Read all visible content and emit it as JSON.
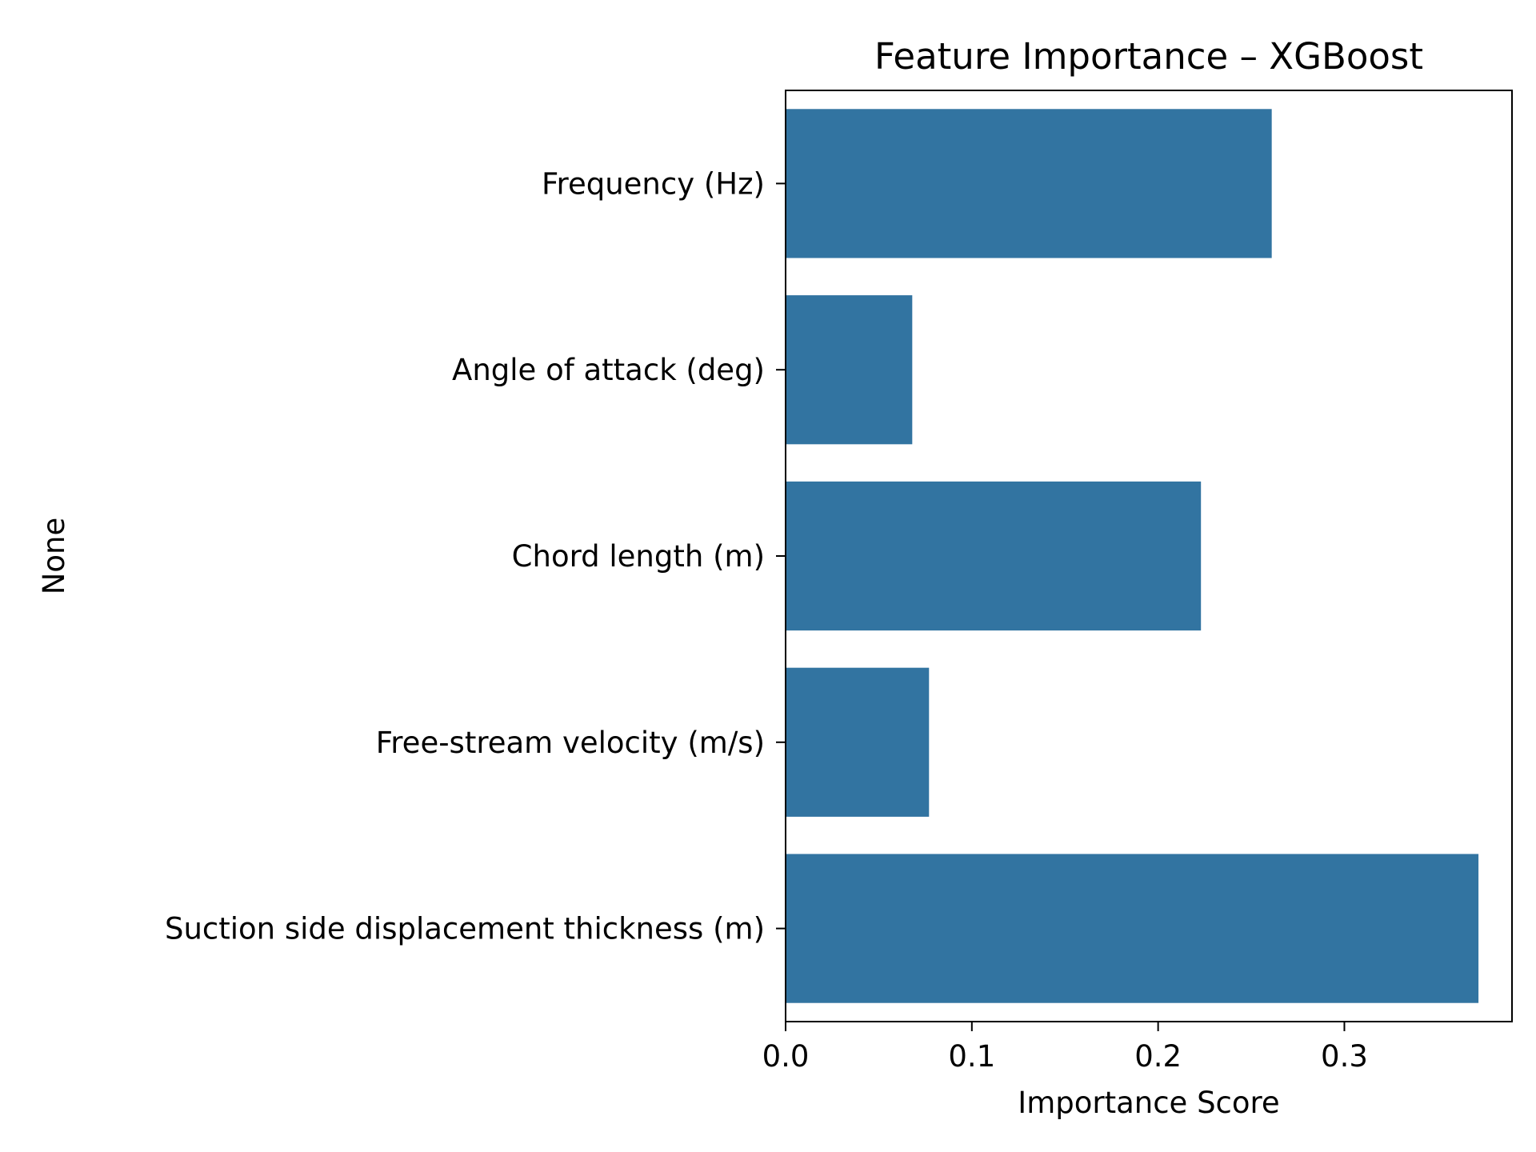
{
  "chart_data": {
    "type": "bar",
    "orientation": "horizontal",
    "title": "Feature Importance – XGBoost",
    "xlabel": "Importance Score",
    "ylabel": "None",
    "categories": [
      "Frequency (Hz)",
      "Angle of attack (deg)",
      "Chord length (m)",
      "Free-stream velocity (m/s)",
      "Suction side displacement thickness (m)"
    ],
    "values": [
      0.261,
      0.068,
      0.223,
      0.077,
      0.372
    ],
    "xlim": [
      0,
      0.39
    ],
    "xticks": [
      0.0,
      0.1,
      0.2,
      0.3
    ],
    "xtick_labels": [
      "0.0",
      "0.1",
      "0.2",
      "0.3"
    ],
    "grid": false,
    "colors": {
      "bar": "#3274a1",
      "axis": "#000000",
      "background": "#ffffff"
    }
  }
}
